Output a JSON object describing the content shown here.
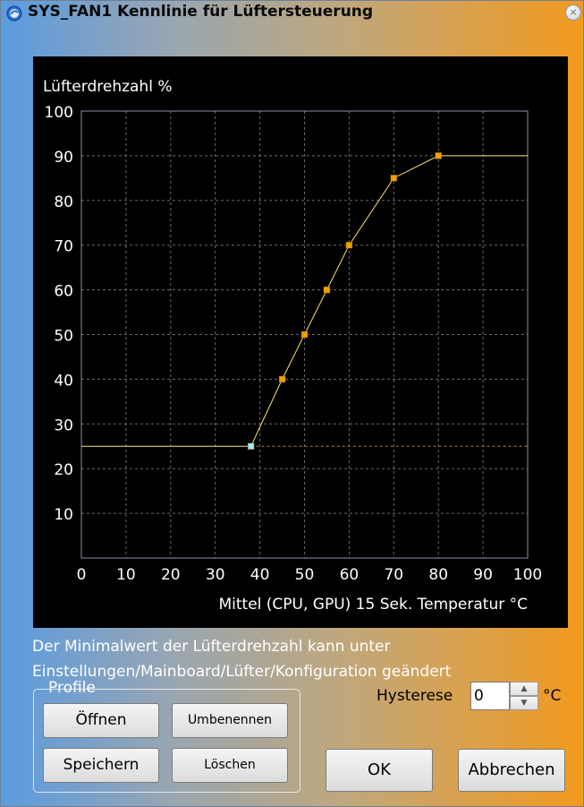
{
  "window": {
    "title": "SYS_FAN1 Kennlinie für Lüftersteuerung",
    "close_glyph": "×",
    "icon": "app-icon"
  },
  "chart_data": {
    "type": "line",
    "ylabel": "Lüfterdrehzahl %",
    "xlabel": "Mittel (CPU, GPU) 15 Sek. Temperatur °C",
    "xlim": [
      0,
      100
    ],
    "ylim": [
      0,
      100
    ],
    "x_ticks": [
      0,
      10,
      20,
      30,
      40,
      50,
      60,
      70,
      80,
      90,
      100
    ],
    "y_ticks": [
      10,
      20,
      30,
      40,
      50,
      60,
      70,
      80,
      90,
      100
    ],
    "grid": true,
    "points": [
      {
        "x": 38,
        "y": 25
      },
      {
        "x": 45,
        "y": 40
      },
      {
        "x": 50,
        "y": 50
      },
      {
        "x": 55,
        "y": 60
      },
      {
        "x": 60,
        "y": 70
      },
      {
        "x": 70,
        "y": 85
      },
      {
        "x": 80,
        "y": 90
      }
    ],
    "minimum_line_y": 25,
    "line_color": "#f5e66a",
    "point_color": "#f0a000",
    "first_point_color": "#a9e7ff",
    "minimum_line_color": "#c96a3a"
  },
  "info_text": "Der Minimalwert der Lüfterdrehzahl kann unter Einstellungen/Mainboard/Lüfter/Konfiguration geändert",
  "profile": {
    "legend": "Profile",
    "open": "Öffnen",
    "rename": "Umbenennen",
    "save": "Speichern",
    "delete": "Löschen"
  },
  "hysteresis": {
    "label": "Hysterese",
    "value": "0",
    "unit": "°C"
  },
  "buttons": {
    "ok": "OK",
    "cancel": "Abbrechen"
  }
}
